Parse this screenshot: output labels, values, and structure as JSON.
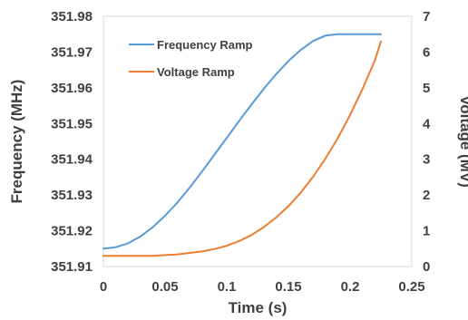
{
  "chart_data": {
    "type": "line",
    "xlabel": "Time (s)",
    "ylabel_left": "Frequency (MHz)",
    "ylabel_right": "Voltage (MV)",
    "xlim": [
      0,
      0.25
    ],
    "ylim_left": [
      351.91,
      351.98
    ],
    "ylim_right": [
      0,
      7
    ],
    "x_ticks": [
      "0",
      "0.05",
      "0.1",
      "0.15",
      "0.2",
      "0.25"
    ],
    "y_left_ticks": [
      "351.98",
      "351.97",
      "351.96",
      "351.95",
      "351.94",
      "351.93",
      "351.92",
      "351.91"
    ],
    "y_right_ticks": [
      "7",
      "6",
      "5",
      "4",
      "3",
      "2",
      "1",
      "0"
    ],
    "grid": false,
    "legend_position": "top-left",
    "series": [
      {
        "name": "Frequency Ramp",
        "axis": "left",
        "color": "#5b9bd5",
        "x": [
          0,
          0.01,
          0.02,
          0.03,
          0.04,
          0.05,
          0.06,
          0.07,
          0.08,
          0.09,
          0.1,
          0.11,
          0.12,
          0.13,
          0.14,
          0.15,
          0.16,
          0.17,
          0.18,
          0.19,
          0.2,
          0.21,
          0.225
        ],
        "y": [
          351.915,
          351.9154,
          351.9165,
          351.9184,
          351.921,
          351.9242,
          351.9279,
          351.9321,
          351.9366,
          351.9413,
          351.946,
          351.9507,
          351.9553,
          351.9597,
          351.9638,
          351.9675,
          351.9706,
          351.9731,
          351.9746,
          351.975,
          351.975,
          351.975,
          351.975
        ]
      },
      {
        "name": "Voltage Ramp",
        "axis": "right",
        "color": "#ed7d31",
        "x": [
          0,
          0.02,
          0.04,
          0.06,
          0.08,
          0.09,
          0.1,
          0.11,
          0.12,
          0.13,
          0.14,
          0.15,
          0.16,
          0.17,
          0.18,
          0.19,
          0.2,
          0.21,
          0.22,
          0.225
        ],
        "y": [
          0.3,
          0.3,
          0.3,
          0.34,
          0.42,
          0.49,
          0.58,
          0.71,
          0.88,
          1.1,
          1.37,
          1.69,
          2.07,
          2.51,
          3.02,
          3.59,
          4.24,
          4.96,
          5.76,
          6.3
        ]
      }
    ]
  }
}
